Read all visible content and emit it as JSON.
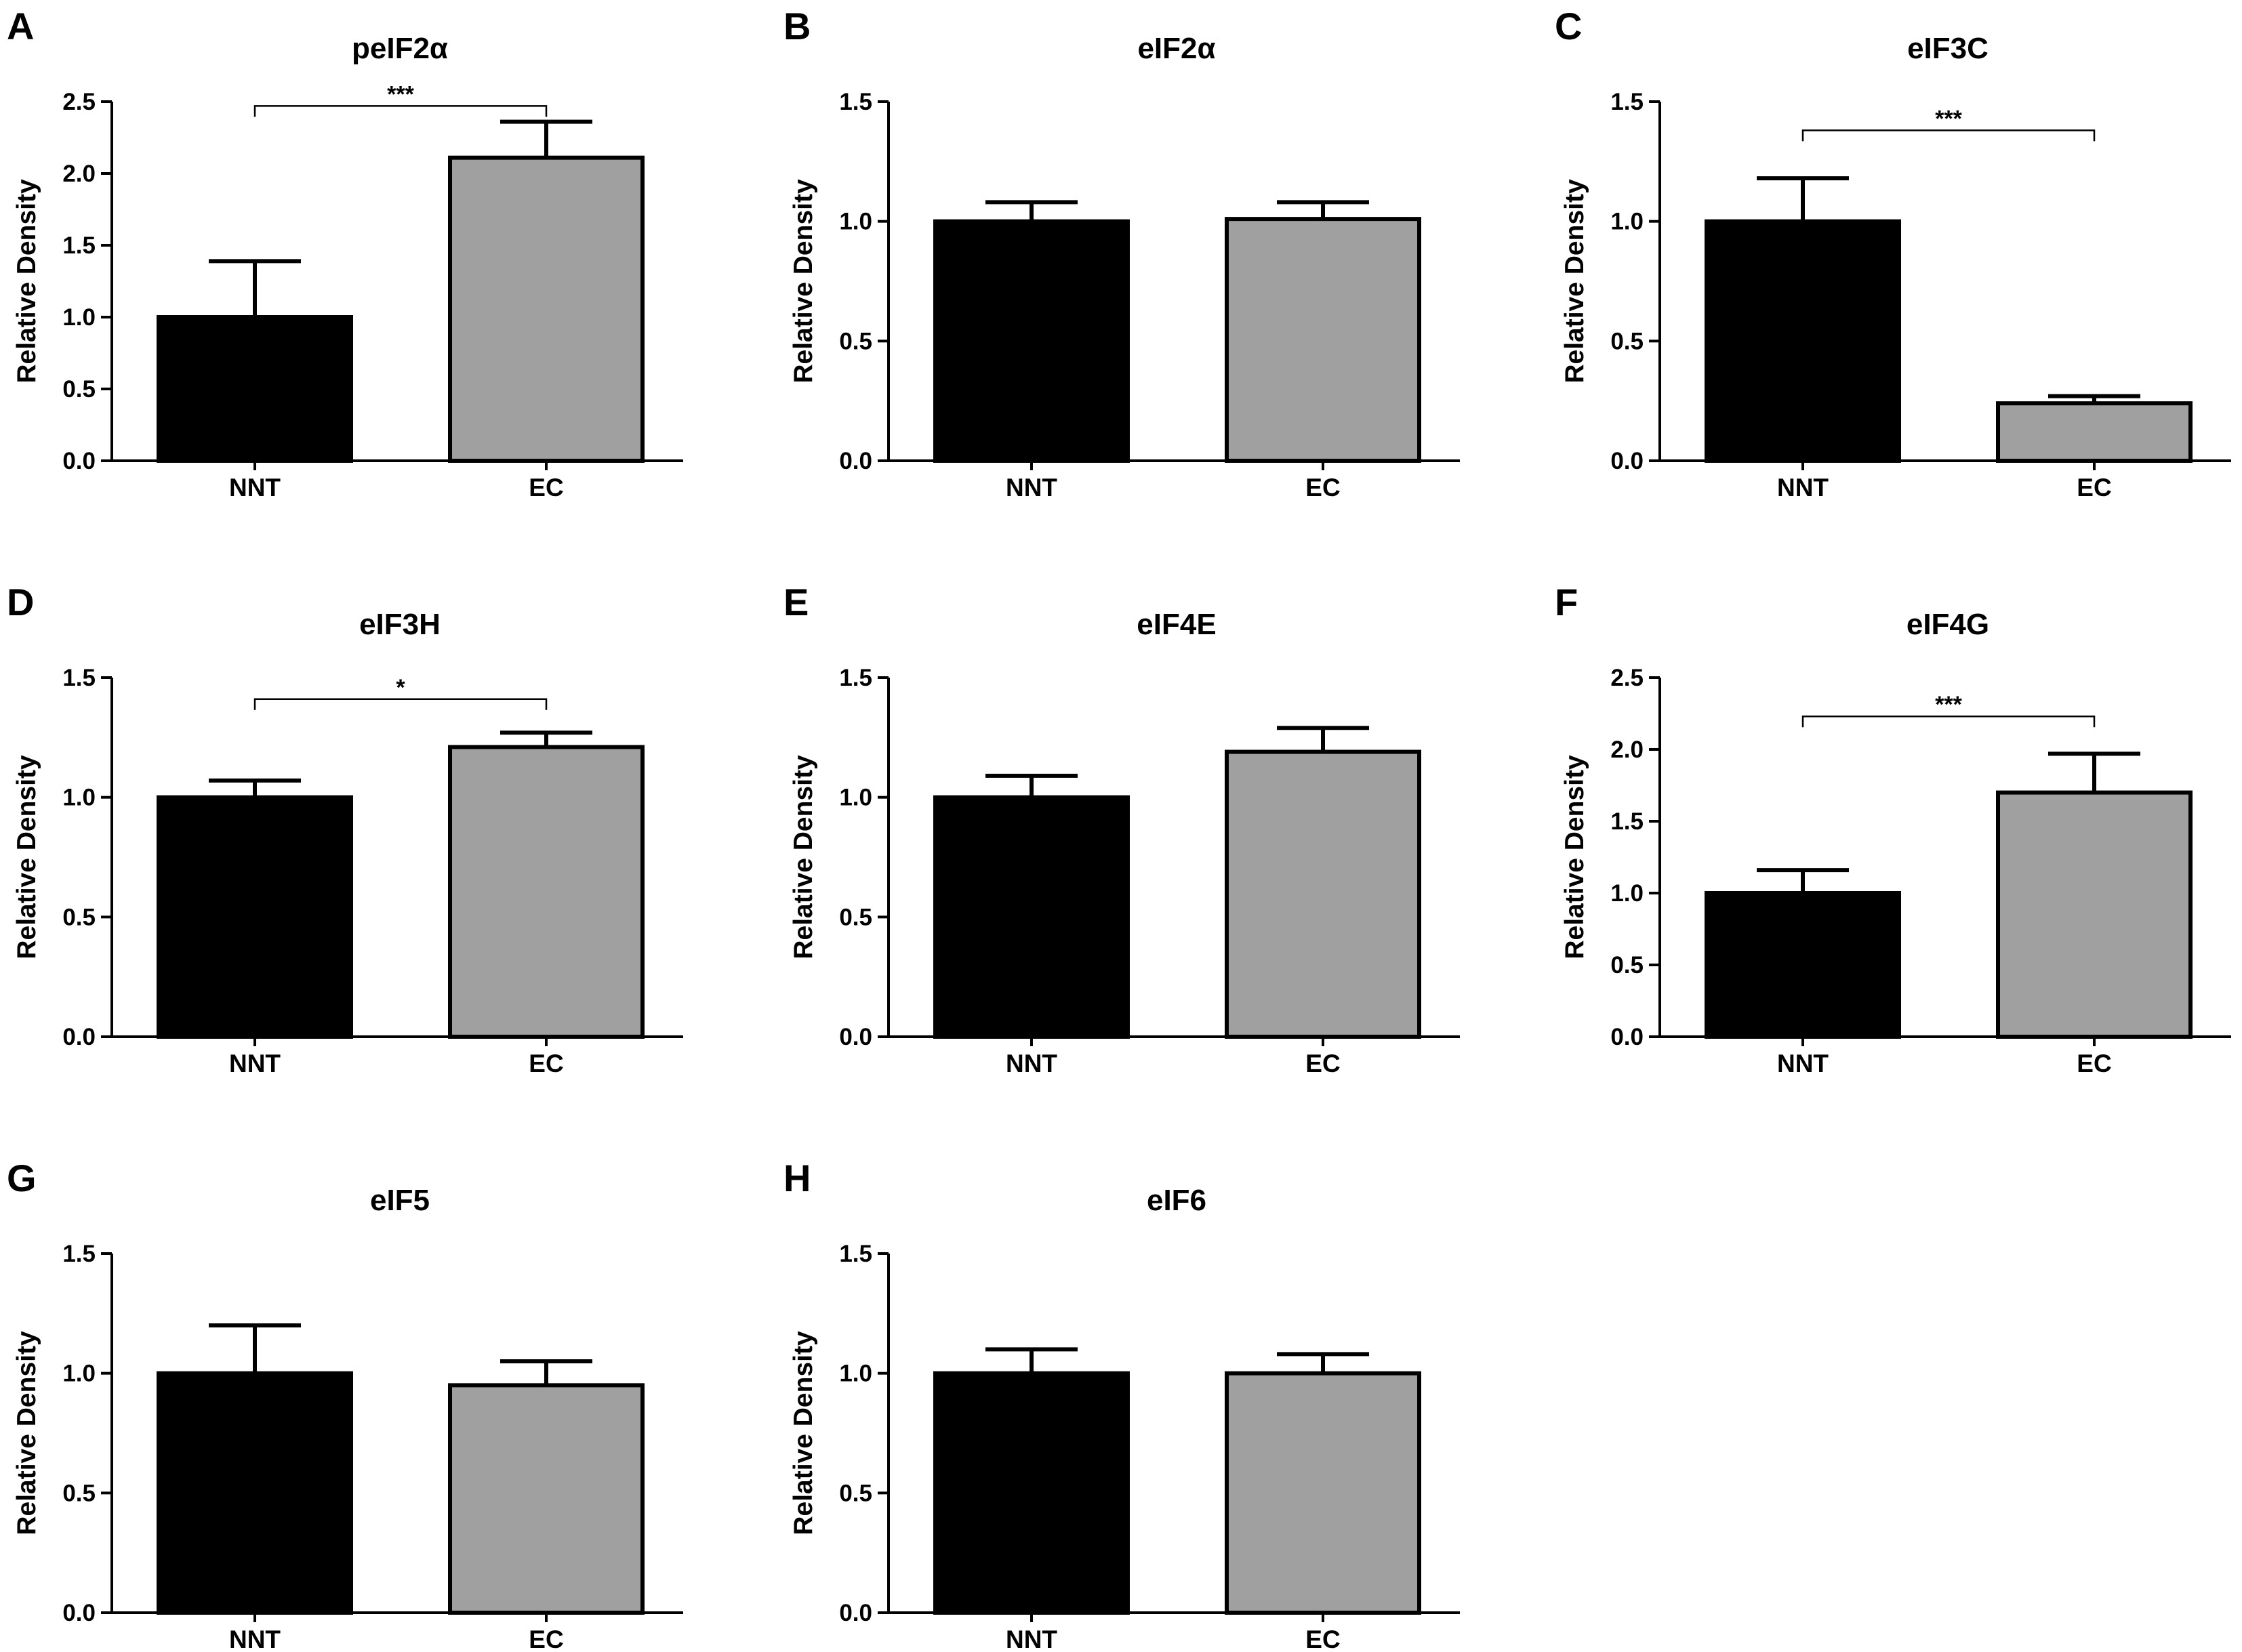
{
  "figure": {
    "bar_colors": [
      "#000000",
      "#a0a0a0"
    ],
    "outline_color": "#000000"
  },
  "chart_data": [
    {
      "type": "bar",
      "panel": "A",
      "title": "peIF2α",
      "categories": [
        "NNT",
        "EC"
      ],
      "values": [
        1.0,
        2.11
      ],
      "errors": [
        0.39,
        0.25
      ],
      "xlabel": "",
      "ylabel": "Relative Density",
      "ylim": [
        0,
        2.5
      ],
      "yticks": [
        "0.0",
        "0.5",
        "1.0",
        "1.5",
        "2.0",
        "2.5"
      ],
      "significance": {
        "label": "***",
        "level": 2.47
      }
    },
    {
      "type": "bar",
      "panel": "B",
      "title": "eIF2α",
      "categories": [
        "NNT",
        "EC"
      ],
      "values": [
        1.0,
        1.01
      ],
      "errors": [
        0.08,
        0.07
      ],
      "xlabel": "",
      "ylabel": "Relative Density",
      "ylim": [
        0,
        1.5
      ],
      "yticks": [
        "0.0",
        "0.5",
        "1.0",
        "1.5"
      ],
      "significance": null
    },
    {
      "type": "bar",
      "panel": "C",
      "title": "eIF3C",
      "categories": [
        "NNT",
        "EC"
      ],
      "values": [
        1.0,
        0.24
      ],
      "errors": [
        0.18,
        0.03
      ],
      "xlabel": "",
      "ylabel": "Relative Density",
      "ylim": [
        0,
        1.5
      ],
      "yticks": [
        "0.0",
        "0.5",
        "1.0",
        "1.5"
      ],
      "significance": {
        "label": "***",
        "level": 1.38
      }
    },
    {
      "type": "bar",
      "panel": "D",
      "title": "eIF3H",
      "categories": [
        "NNT",
        "EC"
      ],
      "values": [
        1.0,
        1.21
      ],
      "errors": [
        0.07,
        0.06
      ],
      "xlabel": "",
      "ylabel": "Relative Density",
      "ylim": [
        0,
        1.5
      ],
      "yticks": [
        "0.0",
        "0.5",
        "1.0",
        "1.5"
      ],
      "significance": {
        "label": "*",
        "level": 1.41
      }
    },
    {
      "type": "bar",
      "panel": "E",
      "title": "eIF4E",
      "categories": [
        "NNT",
        "EC"
      ],
      "values": [
        1.0,
        1.19
      ],
      "errors": [
        0.09,
        0.1
      ],
      "xlabel": "",
      "ylabel": "Relative Density",
      "ylim": [
        0,
        1.5
      ],
      "yticks": [
        "0.0",
        "0.5",
        "1.0",
        "1.5"
      ],
      "significance": null
    },
    {
      "type": "bar",
      "panel": "F",
      "title": "eIF4G",
      "categories": [
        "NNT",
        "EC"
      ],
      "values": [
        1.0,
        1.7
      ],
      "errors": [
        0.16,
        0.27
      ],
      "xlabel": "",
      "ylabel": "Relative Density",
      "ylim": [
        0,
        2.5
      ],
      "yticks": [
        "0.0",
        "0.5",
        "1.0",
        "1.5",
        "2.0",
        "2.5"
      ],
      "significance": {
        "label": "***",
        "level": 2.23
      }
    },
    {
      "type": "bar",
      "panel": "G",
      "title": "eIF5",
      "categories": [
        "NNT",
        "EC"
      ],
      "values": [
        1.0,
        0.95
      ],
      "errors": [
        0.2,
        0.1
      ],
      "xlabel": "",
      "ylabel": "Relative Density",
      "ylim": [
        0,
        1.5
      ],
      "yticks": [
        "0.0",
        "0.5",
        "1.0",
        "1.5"
      ],
      "significance": null
    },
    {
      "type": "bar",
      "panel": "H",
      "title": "eIF6",
      "categories": [
        "NNT",
        "EC"
      ],
      "values": [
        1.0,
        1.0
      ],
      "errors": [
        0.1,
        0.08
      ],
      "xlabel": "",
      "ylabel": "Relative Density",
      "ylim": [
        0,
        1.5
      ],
      "yticks": [
        "0.0",
        "0.5",
        "1.0",
        "1.5"
      ],
      "significance": null
    }
  ]
}
